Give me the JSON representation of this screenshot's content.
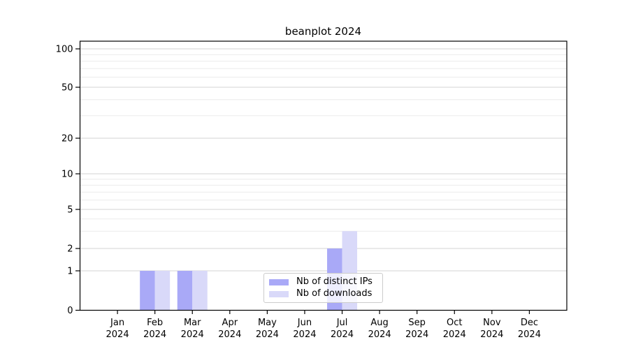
{
  "chart_data": {
    "type": "bar",
    "title": "beanplot 2024",
    "categories": [
      "Jan",
      "Feb",
      "Mar",
      "Apr",
      "May",
      "Jun",
      "Jul",
      "Aug",
      "Sep",
      "Oct",
      "Nov",
      "Dec"
    ],
    "category_year_label": "2024",
    "series": [
      {
        "name": "Nb of distinct IPs",
        "color": "#a9a9f7",
        "values": [
          0,
          1,
          1,
          0,
          0,
          0,
          2,
          0,
          0,
          0,
          0,
          0
        ]
      },
      {
        "name": "Nb of downloads",
        "color": "#d9d9f9",
        "values": [
          0,
          1,
          1,
          0,
          0,
          0,
          3,
          0,
          0,
          0,
          0,
          0
        ]
      }
    ],
    "xlabel": "",
    "ylabel": "",
    "y_axis": {
      "scale": "log-like-with-zero",
      "major_ticks": [
        0,
        1,
        2,
        5,
        10,
        20,
        50,
        100
      ],
      "minor_gridline_values": [
        3,
        4,
        6,
        7,
        8,
        9,
        30,
        40,
        60,
        70,
        80,
        90
      ],
      "ylim": [
        0,
        115
      ]
    },
    "grid": "horizontal",
    "legend_position": "lower-center-inside",
    "colors": {
      "grid_major": "#d3d3d3",
      "grid_minor": "#ebebeb",
      "spine": "#000000",
      "tick_label": "#000000",
      "background": "#ffffff"
    }
  }
}
